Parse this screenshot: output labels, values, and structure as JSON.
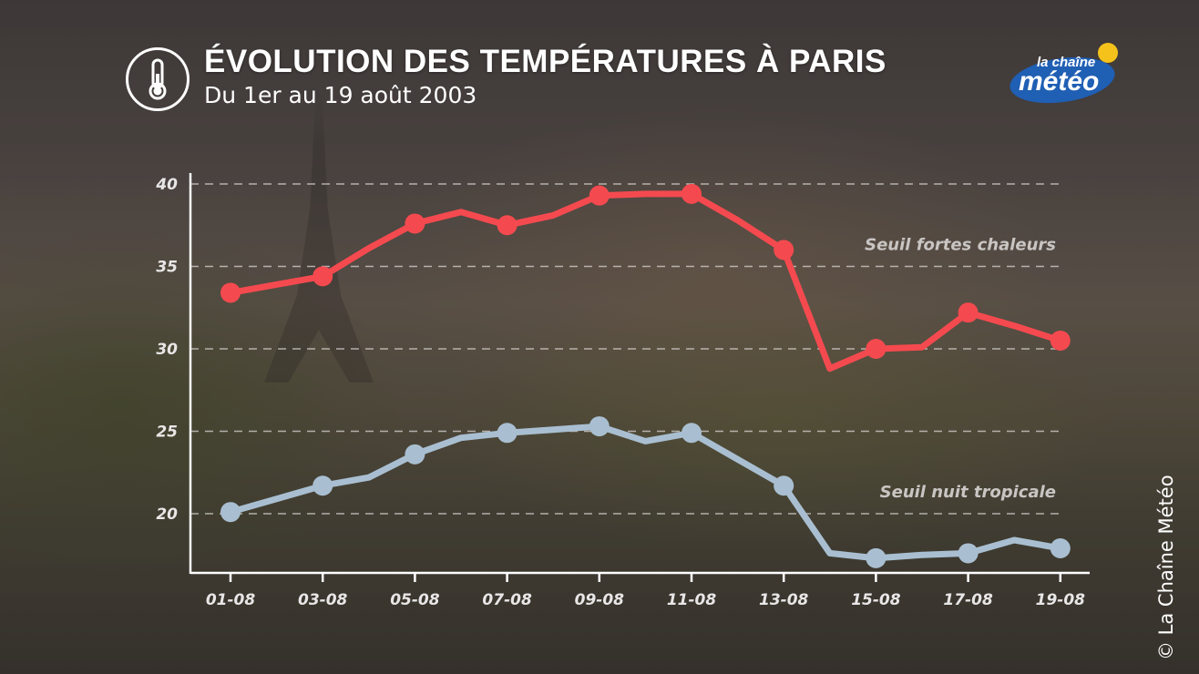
{
  "header": {
    "title": "ÉVOLUTION DES TEMPÉRATURES À PARIS",
    "subtitle": "Du 1er au 19 août 2003",
    "icon": "thermometer-icon"
  },
  "logo": {
    "line1": "la chaîne",
    "line2": "météo",
    "icon": "sun-icon"
  },
  "copyright": "© La Chaîne Météo",
  "colors": {
    "max": "#f44a4f",
    "min": "#a9bfd1",
    "grid": "#d8d4d2",
    "axis": "#ffffff"
  },
  "chart_data": {
    "type": "line",
    "x": [
      "01-08",
      "02-08",
      "03-08",
      "04-08",
      "05-08",
      "06-08",
      "07-08",
      "08-08",
      "09-08",
      "10-08",
      "11-08",
      "12-08",
      "13-08",
      "14-08",
      "15-08",
      "16-08",
      "17-08",
      "18-08",
      "19-08"
    ],
    "x_tick_labels": [
      "01-08",
      "03-08",
      "05-08",
      "07-08",
      "09-08",
      "11-08",
      "13-08",
      "15-08",
      "17-08",
      "19-08"
    ],
    "series": [
      {
        "values": [
          33.4,
          33.9,
          34.4,
          36.1,
          37.6,
          38.3,
          37.5,
          38.1,
          39.3,
          39.4,
          39.4,
          37.8,
          36.0,
          28.8,
          30.0,
          30.1,
          32.2,
          31.4,
          30.5
        ]
      },
      {
        "values": [
          20.1,
          20.9,
          21.7,
          22.2,
          23.6,
          24.6,
          24.9,
          25.1,
          25.3,
          24.4,
          24.9,
          23.3,
          21.7,
          17.6,
          17.3,
          17.5,
          17.6,
          18.4,
          17.9
        ]
      }
    ],
    "ylim": [
      17,
      41
    ],
    "y_ticks": [
      20,
      25,
      30,
      35,
      40
    ],
    "grid": true,
    "thresholds": [
      {
        "value": 35,
        "label": "Seuil fortes chaleurs"
      },
      {
        "value": 20,
        "label": "Seuil nuit tropicale"
      }
    ]
  }
}
